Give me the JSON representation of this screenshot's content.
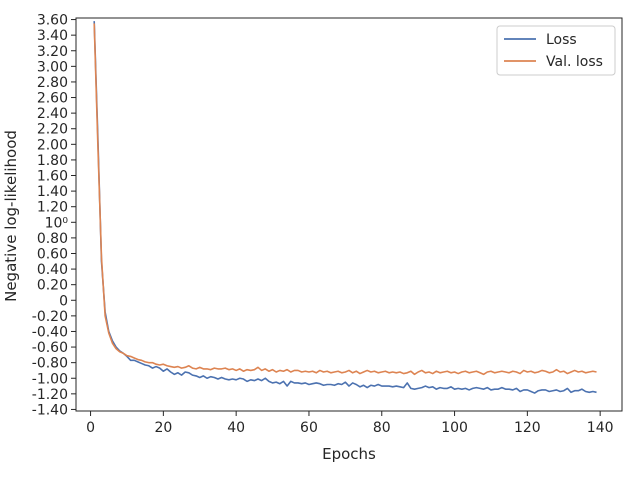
{
  "chart_data": {
    "type": "line",
    "title": "",
    "xlabel": "Epochs",
    "ylabel": "Negative log-likelihood",
    "xlim": [
      -4,
      146
    ],
    "xticks": [
      0,
      20,
      40,
      60,
      80,
      100,
      120,
      140
    ],
    "xtick_labels": [
      "0",
      "20",
      "40",
      "60",
      "80",
      "100",
      "120",
      "140"
    ],
    "ylim": [
      -1.42,
      3.62
    ],
    "yticks": [
      -1.4,
      -1.2,
      -1.0,
      -0.8,
      -0.6,
      -0.4,
      -0.2,
      0.0,
      0.2,
      0.4,
      0.6,
      0.8,
      1.0,
      1.2,
      1.4,
      1.6,
      1.8,
      2.0,
      2.2,
      2.4,
      2.6,
      2.8,
      3.0,
      3.2,
      3.4,
      3.6
    ],
    "ytick_labels": [
      "-1.40",
      "-1.20",
      "-1.00",
      "-0.80",
      "-0.60",
      "-0.40",
      "-0.20",
      "0",
      "0.20",
      "0.40",
      "0.60",
      "0.80",
      "10⁰",
      "1.20",
      "1.40",
      "1.60",
      "1.80",
      "2.00",
      "2.20",
      "2.40",
      "2.60",
      "2.80",
      "3.00",
      "3.20",
      "3.40",
      "3.60"
    ],
    "grid": false,
    "legend_position": "top-right",
    "x": [
      1,
      2,
      3,
      4,
      5,
      6,
      7,
      8,
      9,
      10,
      11,
      12,
      13,
      14,
      15,
      16,
      17,
      18,
      19,
      20,
      21,
      22,
      23,
      24,
      25,
      26,
      27,
      28,
      29,
      30,
      31,
      32,
      33,
      34,
      35,
      36,
      37,
      38,
      39,
      40,
      41,
      42,
      43,
      44,
      45,
      46,
      47,
      48,
      49,
      50,
      51,
      52,
      53,
      54,
      55,
      56,
      57,
      58,
      59,
      60,
      61,
      62,
      63,
      64,
      65,
      66,
      67,
      68,
      69,
      70,
      71,
      72,
      73,
      74,
      75,
      76,
      77,
      78,
      79,
      80,
      81,
      82,
      83,
      84,
      85,
      86,
      87,
      88,
      89,
      90,
      91,
      92,
      93,
      94,
      95,
      96,
      97,
      98,
      99,
      100,
      101,
      102,
      103,
      104,
      105,
      106,
      107,
      108,
      109,
      110,
      111,
      112,
      113,
      114,
      115,
      116,
      117,
      118,
      119,
      120,
      121,
      122,
      123,
      124,
      125,
      126,
      127,
      128,
      129,
      130,
      131,
      132,
      133,
      134,
      135,
      136,
      137,
      138,
      139
    ],
    "series": [
      {
        "name": "Loss",
        "color": "#4c72b0",
        "values": [
          3.58,
          2.1,
          0.5,
          -0.15,
          -0.4,
          -0.52,
          -0.6,
          -0.65,
          -0.68,
          -0.72,
          -0.77,
          -0.77,
          -0.79,
          -0.81,
          -0.83,
          -0.84,
          -0.87,
          -0.85,
          -0.87,
          -0.91,
          -0.88,
          -0.92,
          -0.95,
          -0.93,
          -0.96,
          -0.92,
          -0.93,
          -0.96,
          -0.97,
          -0.99,
          -0.97,
          -1.0,
          -0.98,
          -0.99,
          -1.01,
          -0.99,
          -1.01,
          -1.02,
          -1.01,
          -1.02,
          -1.0,
          -1.01,
          -1.04,
          -1.02,
          -1.03,
          -1.01,
          -1.03,
          -1.0,
          -1.04,
          -1.06,
          -1.05,
          -1.07,
          -1.04,
          -1.1,
          -1.04,
          -1.06,
          -1.06,
          -1.07,
          -1.06,
          -1.08,
          -1.07,
          -1.06,
          -1.07,
          -1.09,
          -1.08,
          -1.08,
          -1.09,
          -1.07,
          -1.08,
          -1.05,
          -1.1,
          -1.06,
          -1.08,
          -1.11,
          -1.09,
          -1.12,
          -1.09,
          -1.1,
          -1.08,
          -1.1,
          -1.1,
          -1.1,
          -1.11,
          -1.1,
          -1.11,
          -1.12,
          -1.06,
          -1.13,
          -1.14,
          -1.13,
          -1.12,
          -1.1,
          -1.12,
          -1.11,
          -1.14,
          -1.12,
          -1.13,
          -1.13,
          -1.11,
          -1.14,
          -1.13,
          -1.14,
          -1.13,
          -1.15,
          -1.13,
          -1.12,
          -1.13,
          -1.14,
          -1.12,
          -1.15,
          -1.14,
          -1.14,
          -1.12,
          -1.14,
          -1.14,
          -1.15,
          -1.13,
          -1.17,
          -1.15,
          -1.15,
          -1.17,
          -1.19,
          -1.16,
          -1.15,
          -1.15,
          -1.17,
          -1.16,
          -1.15,
          -1.17,
          -1.16,
          -1.13,
          -1.18,
          -1.16,
          -1.16,
          -1.14,
          -1.17,
          -1.18,
          -1.17,
          -1.18
        ]
      },
      {
        "name": "Val. loss",
        "color": "#dd8452",
        "values": [
          3.55,
          2.0,
          0.55,
          -0.2,
          -0.42,
          -0.55,
          -0.62,
          -0.66,
          -0.68,
          -0.71,
          -0.72,
          -0.74,
          -0.76,
          -0.77,
          -0.79,
          -0.8,
          -0.8,
          -0.82,
          -0.83,
          -0.82,
          -0.84,
          -0.85,
          -0.86,
          -0.85,
          -0.87,
          -0.86,
          -0.84,
          -0.87,
          -0.88,
          -0.86,
          -0.88,
          -0.88,
          -0.89,
          -0.87,
          -0.88,
          -0.88,
          -0.87,
          -0.89,
          -0.88,
          -0.9,
          -0.88,
          -0.91,
          -0.89,
          -0.9,
          -0.89,
          -0.86,
          -0.9,
          -0.88,
          -0.91,
          -0.89,
          -0.92,
          -0.9,
          -0.91,
          -0.89,
          -0.92,
          -0.9,
          -0.9,
          -0.92,
          -0.91,
          -0.92,
          -0.91,
          -0.93,
          -0.9,
          -0.92,
          -0.91,
          -0.93,
          -0.92,
          -0.91,
          -0.93,
          -0.92,
          -0.9,
          -0.93,
          -0.91,
          -0.94,
          -0.92,
          -0.9,
          -0.92,
          -0.91,
          -0.93,
          -0.92,
          -0.91,
          -0.93,
          -0.92,
          -0.93,
          -0.92,
          -0.94,
          -0.93,
          -0.91,
          -0.95,
          -0.92,
          -0.9,
          -0.93,
          -0.92,
          -0.94,
          -0.91,
          -0.93,
          -0.92,
          -0.91,
          -0.93,
          -0.92,
          -0.94,
          -0.92,
          -0.91,
          -0.93,
          -0.92,
          -0.91,
          -0.93,
          -0.95,
          -0.92,
          -0.91,
          -0.93,
          -0.92,
          -0.91,
          -0.92,
          -0.93,
          -0.91,
          -0.92,
          -0.94,
          -0.9,
          -0.92,
          -0.91,
          -0.93,
          -0.92,
          -0.9,
          -0.91,
          -0.93,
          -0.92,
          -0.89,
          -0.92,
          -0.91,
          -0.94,
          -0.92,
          -0.9,
          -0.92,
          -0.91,
          -0.93,
          -0.92,
          -0.91,
          -0.92
        ]
      }
    ]
  }
}
